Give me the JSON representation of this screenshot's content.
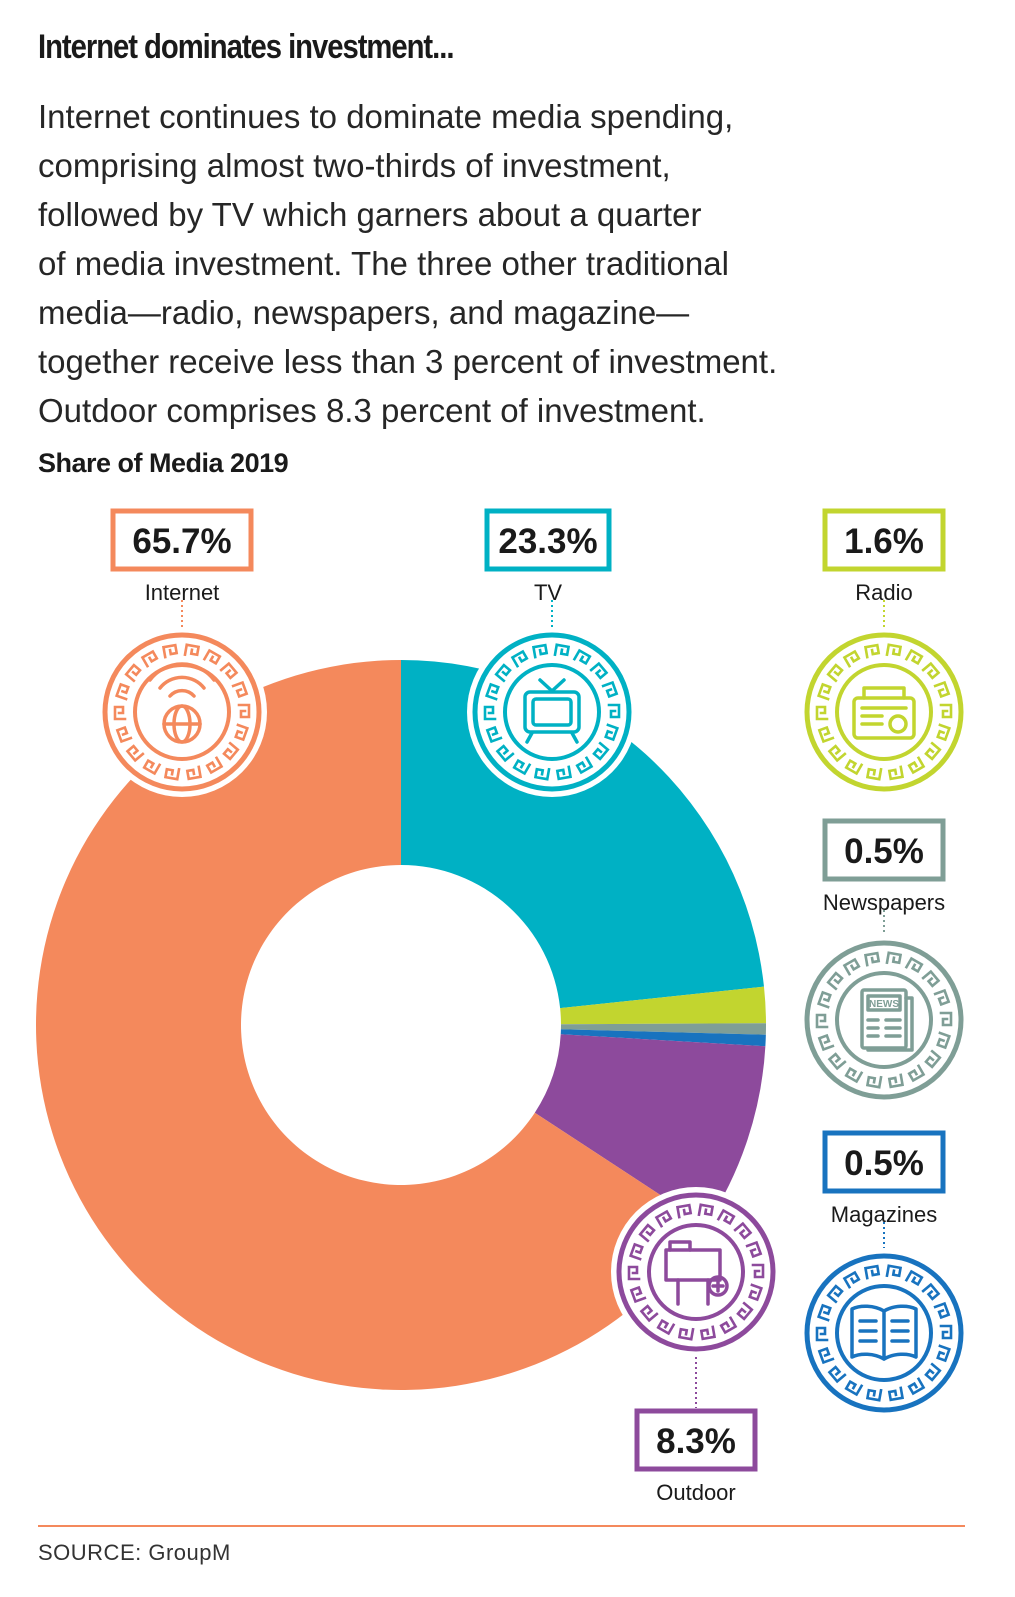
{
  "headline": "Internet dominates investment...",
  "description_lines": [
    "Internet continues to dominate media spending,",
    "comprising almost two-thirds of investment,",
    "followed by TV which garners about a quarter",
    "of media investment. The three other traditional",
    "media—radio, newspapers, and magazine—",
    "together receive less than 3 percent of investment.",
    "Outdoor comprises 8.3 percent of investment."
  ],
  "source": "SOURCE: GroupM",
  "colors": {
    "internet": "#f4895c",
    "tv": "#00b1c4",
    "radio": "#c2d52f",
    "newspapers": "#7f9e96",
    "magazines": "#1873bf",
    "outdoor": "#8d4a9c",
    "rule": "#f4895c"
  },
  "chart_data": {
    "type": "pie",
    "title": "Share of Media 2019",
    "donut": true,
    "unit": "%",
    "categories": [
      "TV",
      "Radio",
      "Newspapers",
      "Magazines",
      "Outdoor",
      "Internet"
    ],
    "values": [
      23.3,
      1.6,
      0.5,
      0.5,
      8.3,
      65.7
    ],
    "labels": [
      "23.3%",
      "1.6%",
      "0.5%",
      "0.5%",
      "8.3%",
      "65.7%"
    ],
    "icons": [
      "tv-icon",
      "radio-icon",
      "newspaper-icon",
      "magazine-icon",
      "billboard-icon",
      "globe-wifi-icon"
    ],
    "icon_text": {
      "newspaper-icon": "NEWS"
    }
  }
}
